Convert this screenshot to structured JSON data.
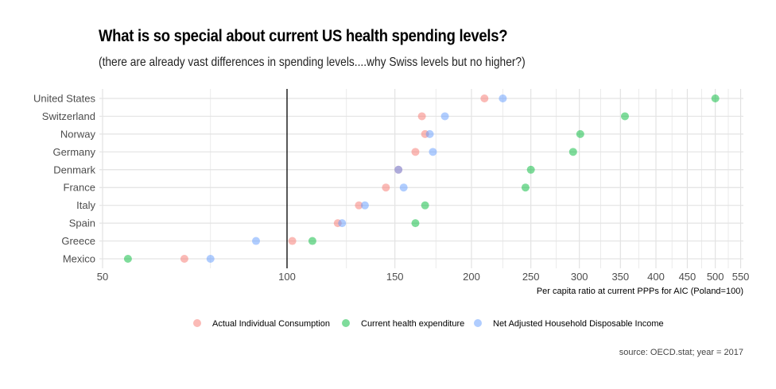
{
  "header": {
    "title": "What is so special about current US health spending levels?",
    "subtitle": "(there are already vast differences in spending levels....why Swiss levels but no higher?)"
  },
  "chart_data": {
    "type": "scatter",
    "title": "What is so special about current US health spending levels?",
    "subtitle": "(there are already vast differences in spending levels....why Swiss levels but no higher?)",
    "xlabel": "Per capita ratio at current PPPs for AIC (Poland=100)",
    "ylabel": "",
    "x_scale": "log",
    "xlim": [
      50,
      560
    ],
    "x_ticks": [
      50,
      100,
      150,
      200,
      250,
      300,
      350,
      400,
      450,
      500,
      550
    ],
    "x_minor_ticks": [
      75,
      125,
      175,
      225,
      275,
      325,
      375,
      425,
      475,
      525
    ],
    "reference_line": {
      "x": 100,
      "color": "#000000"
    },
    "grid": true,
    "legend_position": "bottom",
    "categories": [
      "United States",
      "Switzerland",
      "Norway",
      "Germany",
      "Denmark",
      "France",
      "Italy",
      "Spain",
      "Greece",
      "Mexico"
    ],
    "series": [
      {
        "name": "Actual Individual Consumption",
        "color": "#F8766D",
        "values": [
          210,
          166,
          168,
          162,
          152,
          145,
          131,
          121,
          102,
          68
        ]
      },
      {
        "name": "Current health expenditure",
        "color": "#00BA38",
        "values": [
          500,
          356,
          301,
          293,
          250,
          245,
          168,
          162,
          110,
          55
        ]
      },
      {
        "name": "Net Adjusted Household Disposable Income",
        "color": "#619CFF",
        "values": [
          225,
          181,
          171,
          173,
          152,
          155,
          134,
          123,
          89,
          75
        ]
      }
    ],
    "caption": "source: OECD.stat; year = 2017"
  }
}
